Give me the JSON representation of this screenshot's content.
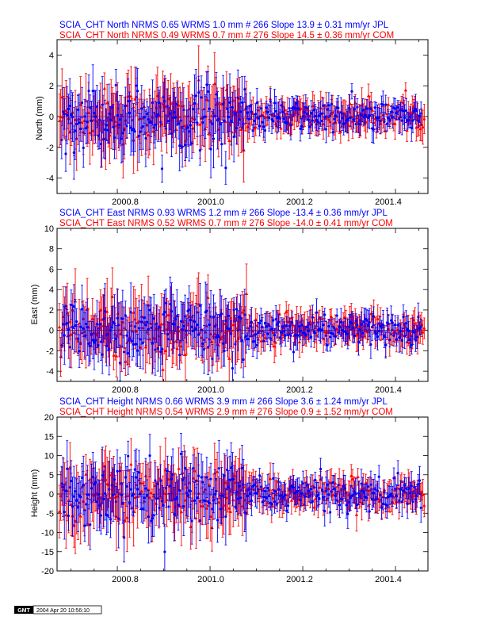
{
  "chart_data": [
    {
      "type": "scatter",
      "component": "North",
      "ylabel": "North (mm)",
      "xlabel": "",
      "ylim": [
        -5,
        5
      ],
      "yticks": [
        -4,
        -2,
        0,
        2,
        4
      ],
      "xlim": [
        2000.67,
        2001.47
      ],
      "xticks": [
        2000.8,
        2001.0,
        2001.2,
        2001.4
      ],
      "xtick_labels": [
        "2000.8",
        "2001.0",
        "2001.2",
        "2001.4"
      ],
      "grid": false,
      "zero_line": true,
      "series": [
        {
          "title": "SCIA_CHT North NRMS 0.65 WRMS  1.0 mm # 266 Slope   13.9 ±  0.31 mm/yr JPL",
          "color": "#0000ff",
          "marker": "circle",
          "n": 266,
          "nrms": 0.65,
          "wrms_mm": 1.0,
          "slope_mm_per_yr": 13.9,
          "slope_err_mm_per_yr": 0.31,
          "source": "JPL"
        },
        {
          "title": "SCIA_CHT North NRMS 0.49 WRMS  0.7 mm # 276 Slope   14.5 ±  0.36 mm/yr COM",
          "color": "#ff0000",
          "marker": "triangle",
          "n": 276,
          "nrms": 0.49,
          "wrms_mm": 0.7,
          "slope_mm_per_yr": 14.5,
          "slope_err_mm_per_yr": 0.36,
          "source": "COM"
        }
      ]
    },
    {
      "type": "scatter",
      "component": "East",
      "ylabel": "East (mm)",
      "xlabel": "",
      "ylim": [
        -5,
        10
      ],
      "yticks": [
        -4,
        -2,
        0,
        2,
        4,
        6,
        8,
        10
      ],
      "xlim": [
        2000.67,
        2001.47
      ],
      "xticks": [
        2000.8,
        2001.0,
        2001.2,
        2001.4
      ],
      "xtick_labels": [
        "2000.8",
        "2001.0",
        "2001.2",
        "2001.4"
      ],
      "grid": false,
      "zero_line": true,
      "series": [
        {
          "title": "SCIA_CHT East NRMS 0.93 WRMS  1.2 mm # 266 Slope  -13.4 ±  0.36 mm/yr JPL",
          "color": "#0000ff",
          "marker": "circle",
          "n": 266,
          "nrms": 0.93,
          "wrms_mm": 1.2,
          "slope_mm_per_yr": -13.4,
          "slope_err_mm_per_yr": 0.36,
          "source": "JPL"
        },
        {
          "title": "SCIA_CHT East NRMS 0.52 WRMS  0.7 mm # 276 Slope  -14.0 ±  0.41 mm/yr COM",
          "color": "#ff0000",
          "marker": "triangle",
          "n": 276,
          "nrms": 0.52,
          "wrms_mm": 0.7,
          "slope_mm_per_yr": -14.0,
          "slope_err_mm_per_yr": 0.41,
          "source": "COM"
        }
      ]
    },
    {
      "type": "scatter",
      "component": "Height",
      "ylabel": "Height (mm)",
      "xlabel": "",
      "ylim": [
        -20,
        20
      ],
      "yticks": [
        -20,
        -15,
        -10,
        -5,
        0,
        5,
        10,
        15,
        20
      ],
      "xlim": [
        2000.67,
        2001.47
      ],
      "xticks": [
        2000.8,
        2001.0,
        2001.2,
        2001.4
      ],
      "xtick_labels": [
        "2000.8",
        "2001.0",
        "2001.2",
        "2001.4"
      ],
      "grid": false,
      "zero_line": true,
      "series": [
        {
          "title": "SCIA_CHT Height NRMS 0.66 WRMS  3.9 mm # 266 Slope    3.6 ±  1.24 mm/yr JPL",
          "color": "#0000ff",
          "marker": "circle",
          "n": 266,
          "nrms": 0.66,
          "wrms_mm": 3.9,
          "slope_mm_per_yr": 3.6,
          "slope_err_mm_per_yr": 1.24,
          "source": "JPL"
        },
        {
          "title": "SCIA_CHT Height NRMS 0.54 WRMS  2.9 mm # 276 Slope    0.9 ±  1.52 mm/yr COM",
          "color": "#ff0000",
          "marker": "triangle",
          "n": 276,
          "nrms": 0.54,
          "wrms_mm": 2.9,
          "slope_mm_per_yr": 0.9,
          "slope_err_mm_per_yr": 1.52,
          "source": "COM"
        }
      ]
    }
  ],
  "stamp": {
    "logo": "GMT",
    "text": "2004 Apr 20 10:56:10"
  }
}
